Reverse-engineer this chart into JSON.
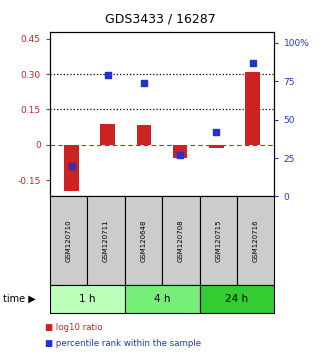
{
  "title": "GDS3433 / 16287",
  "samples": [
    "GSM120710",
    "GSM120711",
    "GSM120648",
    "GSM120708",
    "GSM120715",
    "GSM120716"
  ],
  "log10_ratio": [
    -0.195,
    0.09,
    0.085,
    -0.055,
    -0.012,
    0.31
  ],
  "percentile_rank": [
    20,
    79,
    74,
    27,
    42,
    87
  ],
  "time_groups": [
    {
      "label": "1 h",
      "indices": [
        0,
        1
      ],
      "color": "#bbffbb"
    },
    {
      "label": "4 h",
      "indices": [
        2,
        3
      ],
      "color": "#77ee77"
    },
    {
      "label": "24 h",
      "indices": [
        4,
        5
      ],
      "color": "#33cc33"
    }
  ],
  "ylim_left": [
    -0.22,
    0.48
  ],
  "ylim_right": [
    0,
    107
  ],
  "yticks_left": [
    -0.15,
    0.0,
    0.15,
    0.3,
    0.45
  ],
  "yticks_right": [
    0,
    25,
    50,
    75,
    100
  ],
  "ytick_labels_left": [
    "-0.15",
    "0",
    "0.15",
    "0.30",
    "0.45"
  ],
  "ytick_labels_right": [
    "0",
    "25",
    "50",
    "75",
    "100%"
  ],
  "hlines": [
    0.15,
    0.3
  ],
  "bar_color_red": "#cc2222",
  "bar_color_blue": "#2233cc",
  "zero_line_color": "#cc2222",
  "legend_red": "log10 ratio",
  "legend_blue": "percentile rank within the sample",
  "xlabel_time": "time",
  "bar_width": 0.4,
  "sample_box_color": "#cccccc",
  "figsize": [
    3.21,
    3.54
  ],
  "dpi": 100
}
